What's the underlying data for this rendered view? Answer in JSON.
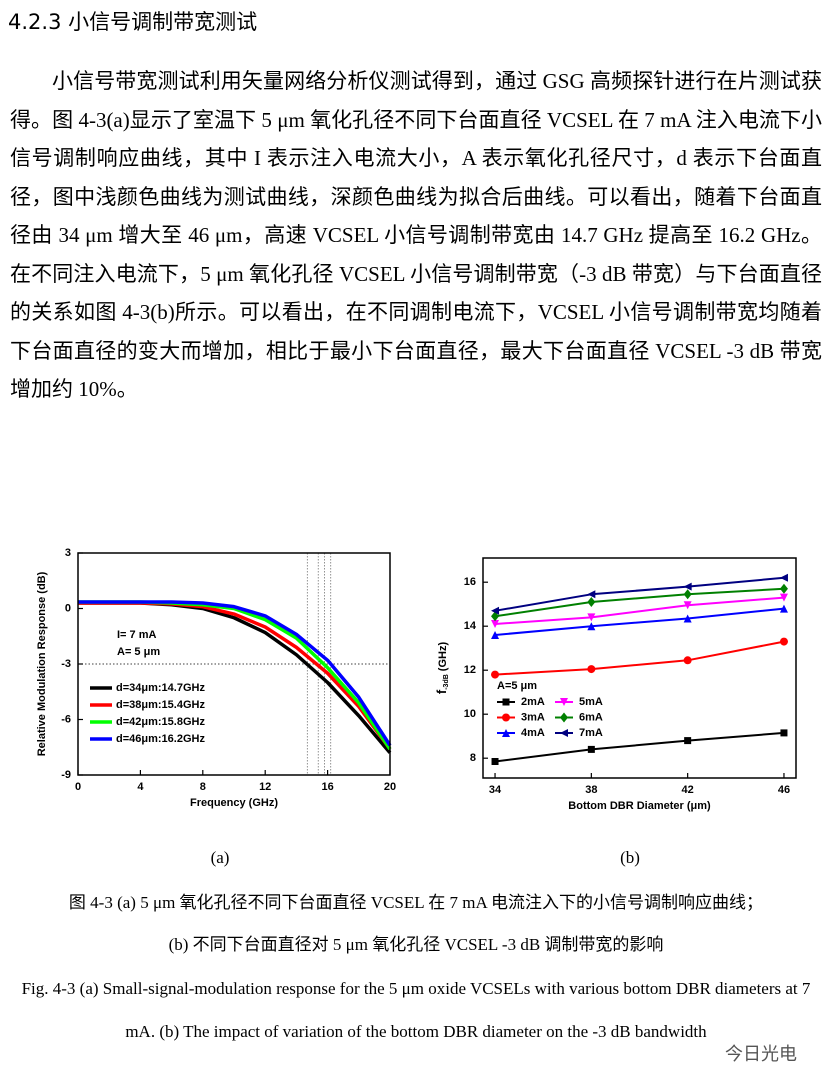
{
  "heading": "4.2.3 小信号调制带宽测试",
  "paragraph": "小信号带宽测试利用矢量网络分析仪测试得到，通过 GSG 高频探针进行在片测试获得。图 4-3(a)显示了室温下 5 μm 氧化孔径不同下台面直径 VCSEL 在 7 mA 注入电流下小信号调制响应曲线，其中 I 表示注入电流大小，A 表示氧化孔径尺寸，d 表示下台面直径，图中浅颜色曲线为测试曲线，深颜色曲线为拟合后曲线。可以看出，随着下台面直径由 34 μm 增大至 46 μm，高速 VCSEL 小信号调制带宽由 14.7 GHz 提高至 16.2 GHz。在不同注入电流下，5 μm 氧化孔径 VCSEL 小信号调制带宽（-3 dB 带宽）与下台面直径的关系如图 4-3(b)所示。可以看出，在不同调制电流下，VCSEL 小信号调制带宽均随着下台面直径的变大而增加，相比于最小下台面直径，最大下台面直径 VCSEL -3 dB 带宽增加约 10%。",
  "chart_data": [
    {
      "type": "line",
      "xlabel": "Frequency (GHz)",
      "ylabel": "Relative Modulation Response (dB)",
      "x": [
        0,
        2,
        4,
        6,
        8,
        10,
        12,
        14,
        16,
        18,
        20
      ],
      "xlim": [
        0,
        20
      ],
      "ylim": [
        -9,
        3
      ],
      "xticks": [
        0,
        4,
        8,
        12,
        16,
        20
      ],
      "yticks": [
        3,
        0,
        -3,
        -6,
        -9
      ],
      "annotations": [
        "I= 7 mA",
        "A= 5 μm"
      ],
      "reference_lines": {
        "x": [
          14.7,
          15.4,
          15.8,
          16.2
        ],
        "y": [
          -3
        ]
      },
      "legend": "lower left",
      "series": [
        {
          "name": "d=34μm:14.7GHz",
          "color": "#000000",
          "values": [
            0.3,
            0.3,
            0.3,
            0.2,
            0,
            -0.5,
            -1.3,
            -2.5,
            -4,
            -5.8,
            -7.8
          ]
        },
        {
          "name": "d=38μm:15.4GHz",
          "color": "#ff0000",
          "values": [
            0.3,
            0.3,
            0.3,
            0.25,
            0.1,
            -0.3,
            -1.0,
            -2.1,
            -3.5,
            -5.3,
            -7.6
          ]
        },
        {
          "name": "d=42μm:15.8GHz",
          "color": "#00ff00",
          "values": [
            0.35,
            0.35,
            0.35,
            0.3,
            0.2,
            0,
            -0.6,
            -1.6,
            -3.2,
            -5.1,
            -7.6
          ]
        },
        {
          "name": "d=46μm:16.2GHz",
          "color": "#0000ff",
          "values": [
            0.35,
            0.35,
            0.35,
            0.35,
            0.3,
            0.1,
            -0.4,
            -1.4,
            -2.8,
            -4.8,
            -7.4
          ]
        }
      ]
    },
    {
      "type": "line",
      "xlabel": "Bottom DBR Diameter (μm)",
      "ylabel": "f",
      "ylabel_sub": "-3dB",
      "ylabel_unit": "(GHz)",
      "x": [
        34,
        38,
        42,
        46
      ],
      "xlim": [
        33.5,
        46.5
      ],
      "ylim": [
        7.1,
        17.1
      ],
      "xticks": [
        34,
        38,
        42,
        46
      ],
      "yticks": [
        8,
        10,
        12,
        14,
        16
      ],
      "annotations": [
        "A=5 μm"
      ],
      "legend": "center left",
      "series": [
        {
          "name": "2mA",
          "color": "#000000",
          "marker": "square",
          "values": [
            7.85,
            8.4,
            8.8,
            9.15
          ]
        },
        {
          "name": "3mA",
          "color": "#ff0000",
          "marker": "circle",
          "values": [
            11.8,
            12.05,
            12.45,
            13.3
          ]
        },
        {
          "name": "4mA",
          "color": "#0000ff",
          "marker": "triangle-up",
          "values": [
            13.6,
            14.0,
            14.35,
            14.8
          ]
        },
        {
          "name": "5mA",
          "color": "#ff00ff",
          "marker": "triangle-down",
          "values": [
            14.1,
            14.4,
            14.95,
            15.3
          ]
        },
        {
          "name": "6mA",
          "color": "#008000",
          "marker": "diamond",
          "values": [
            14.45,
            15.1,
            15.45,
            15.7
          ]
        },
        {
          "name": "7mA",
          "color": "#000080",
          "marker": "triangle-left",
          "values": [
            14.7,
            15.45,
            15.8,
            16.2
          ]
        }
      ]
    }
  ],
  "captions": {
    "a": "(a)",
    "b": "(b)",
    "zh_line1": "图 4-3 (a) 5 μm 氧化孔径不同下台面直径 VCSEL 在 7 mA 电流注入下的小信号调制响应曲线；",
    "zh_line2": "(b) 不同下台面直径对 5 μm 氧化孔径 VCSEL -3 dB 调制带宽的影响",
    "en": "Fig. 4-3 (a) Small-signal-modulation response for the 5 μm oxide VCSELs with various bottom DBR diameters at 7 mA. (b) The impact of variation of the bottom DBR diameter on the -3 dB bandwidth"
  },
  "watermark": "今日光电"
}
